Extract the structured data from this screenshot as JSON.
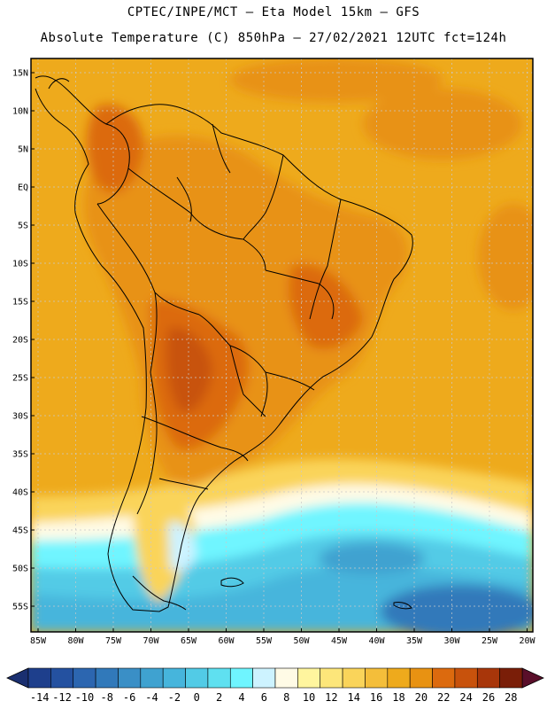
{
  "header": {
    "line1": "CPTEC/INPE/MCT –  Eta Model 15km – GFS",
    "line2": "Absolute Temperature (C) 850hPa – 27/02/2021 12UTC fct=124h"
  },
  "map": {
    "lat_labels": [
      "15N",
      "10N",
      "5N",
      "EQ",
      "5S",
      "10S",
      "15S",
      "20S",
      "25S",
      "30S",
      "35S",
      "40S",
      "45S",
      "50S",
      "55S"
    ],
    "lon_labels": [
      "85W",
      "80W",
      "75W",
      "70W",
      "65W",
      "60W",
      "55W",
      "50W",
      "45W",
      "40W",
      "35W",
      "30W",
      "25W",
      "20W"
    ]
  },
  "colorbar": {
    "labels": [
      "-14",
      "-12",
      "-10",
      "-8",
      "-6",
      "-4",
      "-2",
      "0",
      "2",
      "4",
      "6",
      "8",
      "10",
      "12",
      "14",
      "16",
      "18",
      "20",
      "22",
      "24",
      "26",
      "28"
    ],
    "colors": [
      "#1e3f8c",
      "#2451a0",
      "#2c66b0",
      "#3179ba",
      "#3a8fc6",
      "#3fa2d0",
      "#46b5dc",
      "#52cbe6",
      "#5fe0f0",
      "#6ff5ff",
      "#cdf3ff",
      "#fffbe6",
      "#fff59e",
      "#fde67a",
      "#fad45a",
      "#f4be3a",
      "#eeaa1c",
      "#e89212",
      "#dc6a0e",
      "#c8520c",
      "#a8360a",
      "#7a1e08"
    ],
    "left_arrow_color": "#1a2f70",
    "right_arrow_color": "#5a0f2a"
  }
}
